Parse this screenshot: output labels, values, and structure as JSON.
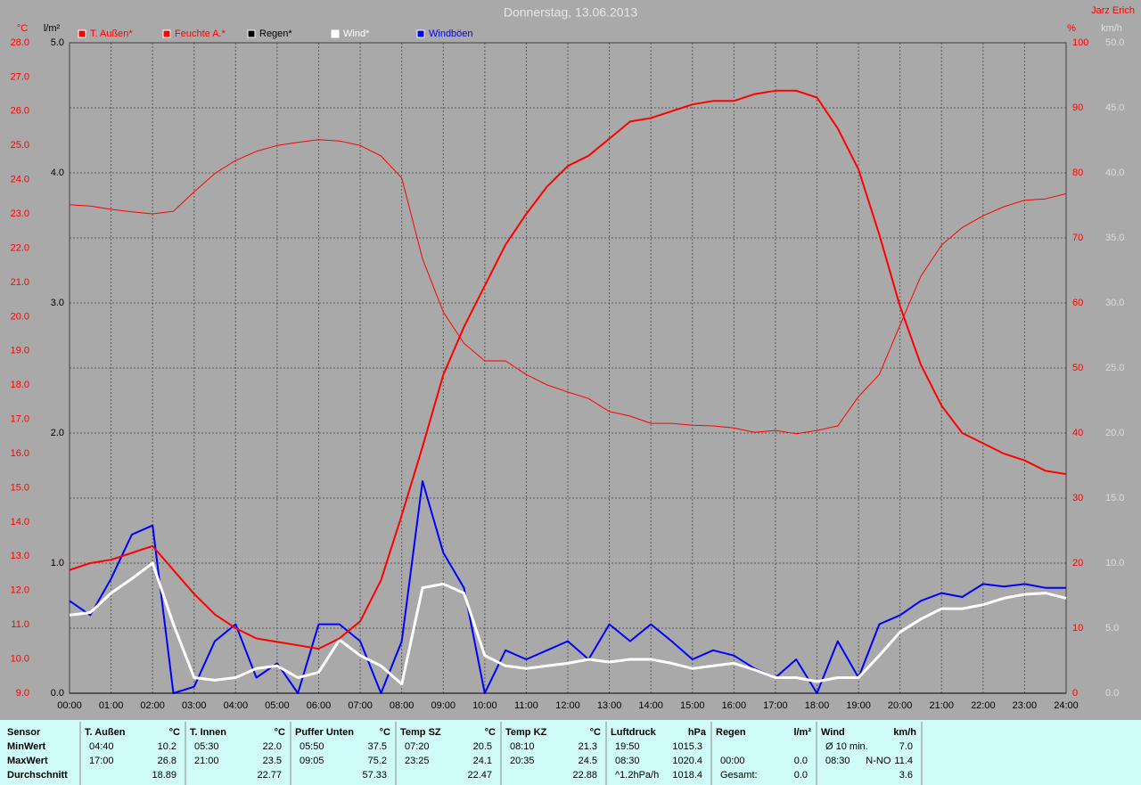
{
  "chart_data": {
    "type": "line",
    "title": "Donnerstag, 13.06.2013",
    "annotation": "Jarz Erich",
    "ylabel": "°C",
    "y3label": "l/m²",
    "y2label": "%",
    "y4label": "km/h",
    "grid": true,
    "xlim": [
      0,
      24
    ],
    "xticks": [
      {
        "value": 0,
        "label": "00:00"
      },
      {
        "value": 1,
        "label": "01:00"
      },
      {
        "value": 2,
        "label": "02:00"
      },
      {
        "value": 3,
        "label": "03:00"
      },
      {
        "value": 4,
        "label": "04:00"
      },
      {
        "value": 5,
        "label": "05:00"
      },
      {
        "value": 6,
        "label": "06:00"
      },
      {
        "value": 7,
        "label": "07:00"
      },
      {
        "value": 8,
        "label": "08:00"
      },
      {
        "value": 9,
        "label": "09:00"
      },
      {
        "value": 10,
        "label": "10:00"
      },
      {
        "value": 11,
        "label": "11:00"
      },
      {
        "value": 12,
        "label": "12:00"
      },
      {
        "value": 13,
        "label": "13:00"
      },
      {
        "value": 14,
        "label": "14:00"
      },
      {
        "value": 15,
        "label": "15:00"
      },
      {
        "value": 16,
        "label": "16:00"
      },
      {
        "value": 17,
        "label": "17:00"
      },
      {
        "value": 18,
        "label": "18:00"
      },
      {
        "value": 19,
        "label": "19:00"
      },
      {
        "value": 20,
        "label": "20:00"
      },
      {
        "value": 21,
        "label": "21:00"
      },
      {
        "value": 22,
        "label": "22:00"
      },
      {
        "value": 23,
        "label": "23:00"
      },
      {
        "value": 24,
        "label": "24:00"
      }
    ],
    "ylim": [
      9,
      28
    ],
    "yticks": [
      {
        "value": 9,
        "label": "9.0"
      },
      {
        "value": 10,
        "label": "10.0"
      },
      {
        "value": 11,
        "label": "11.0"
      },
      {
        "value": 12,
        "label": "12.0"
      },
      {
        "value": 13,
        "label": "13.0"
      },
      {
        "value": 14,
        "label": "14.0"
      },
      {
        "value": 15,
        "label": "15.0"
      },
      {
        "value": 16,
        "label": "16.0"
      },
      {
        "value": 17,
        "label": "17.0"
      },
      {
        "value": 18,
        "label": "18.0"
      },
      {
        "value": 19,
        "label": "19.0"
      },
      {
        "value": 20,
        "label": "20.0"
      },
      {
        "value": 21,
        "label": "21.0"
      },
      {
        "value": 22,
        "label": "22.0"
      },
      {
        "value": 23,
        "label": "23.0"
      },
      {
        "value": 24,
        "label": "24.0"
      },
      {
        "value": 25,
        "label": "25.0"
      },
      {
        "value": 26,
        "label": "26.0"
      },
      {
        "value": 27,
        "label": "27.0"
      },
      {
        "value": 28,
        "label": "28.0"
      }
    ],
    "y3lim": [
      0,
      5
    ],
    "y3ticks": [
      {
        "value": 0,
        "label": "0.0"
      },
      {
        "value": 1,
        "label": "1.0"
      },
      {
        "value": 2,
        "label": "2.0"
      },
      {
        "value": 3,
        "label": "3.0"
      },
      {
        "value": 4,
        "label": "4.0"
      },
      {
        "value": 5,
        "label": "5.0"
      }
    ],
    "y2lim": [
      0,
      100
    ],
    "y2ticks": [
      0,
      10,
      20,
      30,
      40,
      50,
      60,
      70,
      80,
      90,
      100
    ],
    "y4lim": [
      0,
      50
    ],
    "y4ticks": [
      {
        "value": 0,
        "label": "0.0"
      },
      {
        "value": 5,
        "label": "5.0"
      },
      {
        "value": 10,
        "label": "10.0"
      },
      {
        "value": 15,
        "label": "15.0"
      },
      {
        "value": 20,
        "label": "20.0"
      },
      {
        "value": 25,
        "label": "25.0"
      },
      {
        "value": 30,
        "label": "30.0"
      },
      {
        "value": 35,
        "label": "35.0"
      },
      {
        "value": 40,
        "label": "40.0"
      },
      {
        "value": 45,
        "label": "45.0"
      },
      {
        "value": 50,
        "label": "50.0"
      }
    ],
    "x": [
      0,
      0.5,
      1,
      1.5,
      2,
      2.5,
      3,
      3.5,
      4,
      4.5,
      5,
      5.5,
      6,
      6.5,
      7,
      7.5,
      8,
      8.5,
      9,
      9.5,
      10,
      10.5,
      11,
      11.5,
      12,
      12.5,
      13,
      13.5,
      14,
      14.5,
      15,
      15.5,
      16,
      16.5,
      17,
      17.5,
      18,
      18.5,
      19,
      19.5,
      20,
      20.5,
      21,
      21.5,
      22,
      22.5,
      23,
      23.5,
      24
    ],
    "series": [
      {
        "name": "T. Außen*",
        "color": "#ff0000",
        "axis": "y",
        "values": [
          12.6,
          12.8,
          12.9,
          13.1,
          13.3,
          12.6,
          11.9,
          11.3,
          10.9,
          10.6,
          10.5,
          10.4,
          10.3,
          10.6,
          11.1,
          12.3,
          14.2,
          16.2,
          18.3,
          19.7,
          20.9,
          22.1,
          23.0,
          23.8,
          24.4,
          24.7,
          25.2,
          25.7,
          25.8,
          26.0,
          26.2,
          26.3,
          26.3,
          26.5,
          26.6,
          26.6,
          26.4,
          25.5,
          24.3,
          22.4,
          20.3,
          18.6,
          17.4,
          16.6,
          16.3,
          16.0,
          15.8,
          15.5,
          15.4
        ]
      },
      {
        "name": "Feuchte A.*",
        "color": "#ff0000",
        "axis": "y2",
        "values": [
          75.1,
          74.9,
          74.4,
          74.0,
          73.7,
          74.1,
          77.1,
          79.9,
          81.9,
          83.3,
          84.2,
          84.7,
          85.1,
          84.9,
          84.2,
          82.6,
          79.2,
          66.8,
          58.6,
          53.8,
          51.1,
          51.1,
          49.0,
          47.4,
          46.3,
          45.3,
          43.3,
          42.6,
          41.5,
          41.5,
          41.2,
          41.1,
          40.8,
          40.1,
          40.4,
          39.9,
          40.4,
          41.1,
          45.6,
          49.0,
          56.6,
          64.1,
          68.9,
          71.6,
          73.4,
          74.8,
          75.8,
          76.0,
          76.8
        ]
      },
      {
        "name": "Regen*",
        "color": "#000000",
        "axis": "y3",
        "values": [
          0,
          0,
          0,
          0,
          0,
          0,
          0,
          0,
          0,
          0,
          0,
          0,
          0,
          0,
          0,
          0,
          0,
          0,
          0,
          0,
          0,
          0,
          0,
          0,
          0,
          0,
          0,
          0,
          0,
          0,
          0,
          0,
          0,
          0,
          0,
          0,
          0,
          0,
          0,
          0,
          0,
          0,
          0,
          0,
          0,
          0,
          0,
          0,
          0
        ]
      },
      {
        "name": "Wind*",
        "color": "#ffffff",
        "axis": "y4",
        "values": [
          6.0,
          6.2,
          7.7,
          8.8,
          10.0,
          5.3,
          1.2,
          1.0,
          1.2,
          1.9,
          2.1,
          1.2,
          1.6,
          4.1,
          2.9,
          2.1,
          0.7,
          8.1,
          8.4,
          7.7,
          2.9,
          2.1,
          1.9,
          2.1,
          2.3,
          2.6,
          2.4,
          2.6,
          2.6,
          2.3,
          1.9,
          2.1,
          2.3,
          1.8,
          1.2,
          1.2,
          0.9,
          1.2,
          1.2,
          2.9,
          4.7,
          5.7,
          6.5,
          6.5,
          6.8,
          7.3,
          7.6,
          7.7,
          7.3
        ]
      },
      {
        "name": "Windböen",
        "color": "#0000ff",
        "axis": "y4",
        "values": [
          7.1,
          6.0,
          8.8,
          12.2,
          12.9,
          0,
          0.5,
          4.0,
          5.3,
          1.2,
          2.3,
          0,
          5.3,
          5.3,
          4.0,
          0,
          4.0,
          16.3,
          10.8,
          8.1,
          0,
          3.3,
          2.6,
          3.3,
          4.0,
          2.6,
          5.3,
          4.0,
          5.3,
          4.0,
          2.6,
          3.3,
          2.9,
          1.9,
          1.2,
          2.6,
          0,
          4.0,
          1.2,
          5.3,
          6.0,
          7.1,
          7.7,
          7.4,
          8.4,
          8.2,
          8.4,
          8.1,
          8.1
        ]
      }
    ]
  },
  "stats": {
    "row_labels": [
      "Sensor",
      "MinWert",
      "MaxWert",
      "Durchschnitt"
    ],
    "groups": [
      {
        "name": "T. Außen",
        "unit": "°C",
        "rows": [
          {
            "time": "04:40",
            "value": "10.2"
          },
          {
            "time": "17:00",
            "value": "26.8"
          },
          {
            "value": "18.89"
          }
        ]
      },
      {
        "name": "T. Innen",
        "unit": "°C",
        "rows": [
          {
            "time": "05:30",
            "value": "22.0"
          },
          {
            "time": "21:00",
            "value": "23.5"
          },
          {
            "value": "22.77"
          }
        ]
      },
      {
        "name": "Puffer Unten",
        "unit": "°C",
        "rows": [
          {
            "time": "05:50",
            "value": "37.5"
          },
          {
            "time": "09:05",
            "value": "75.2"
          },
          {
            "value": "57.33"
          }
        ]
      },
      {
        "name": "Temp SZ",
        "unit": "°C",
        "rows": [
          {
            "time": "07:20",
            "value": "20.5"
          },
          {
            "time": "23:25",
            "value": "24.1"
          },
          {
            "value": "22.47"
          }
        ]
      },
      {
        "name": "Temp KZ",
        "unit": "°C",
        "rows": [
          {
            "time": "08:10",
            "value": "21.3"
          },
          {
            "time": "20:35",
            "value": "24.5"
          },
          {
            "value": "22.88"
          }
        ]
      },
      {
        "name": "Luftdruck",
        "unit": "hPa",
        "rows": [
          {
            "time": "19:50",
            "value": "1015.3"
          },
          {
            "time": "08:30",
            "value": "1020.4"
          },
          {
            "time": "^1.2hPa/h",
            "value": "1018.4"
          }
        ]
      },
      {
        "name": "Regen",
        "unit": "l/m²",
        "rows": [
          null,
          {
            "time": "00:00",
            "value": "0.0"
          },
          {
            "time": "Gesamt:",
            "value": "0.0"
          }
        ]
      },
      {
        "name": "Wind",
        "unit": "km/h",
        "rows": [
          {
            "time": "Ø 10 min.",
            "value": "7.0"
          },
          {
            "time": "08:30",
            "extra": "N-NO",
            "value": "11.4"
          },
          {
            "value": "3.6"
          }
        ]
      }
    ]
  }
}
